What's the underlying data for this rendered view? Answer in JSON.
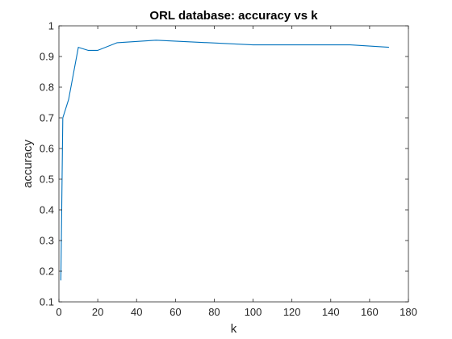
{
  "chart_data": {
    "type": "line",
    "title": "ORL database: accuracy vs k",
    "xlabel": "k",
    "ylabel": "accuracy",
    "xlim": [
      0,
      180
    ],
    "ylim": [
      0.1,
      1
    ],
    "xticks": [
      0,
      20,
      40,
      60,
      80,
      100,
      120,
      140,
      160,
      180
    ],
    "yticks": [
      0.1,
      0.2,
      0.3,
      0.4,
      0.5,
      0.6,
      0.7,
      0.8,
      0.9,
      1
    ],
    "ytick_labels": [
      "0.1",
      "0.2",
      "0.3",
      "0.4",
      "0.5",
      "0.6",
      "0.7",
      "0.8",
      "0.9",
      "1"
    ],
    "grid": false,
    "series": [
      {
        "color": "#0072BD",
        "x": [
          1,
          2,
          3,
          5,
          10,
          15,
          20,
          30,
          50,
          100,
          150,
          170
        ],
        "y": [
          0.17,
          0.7,
          0.72,
          0.76,
          0.93,
          0.92,
          0.92,
          0.945,
          0.953,
          0.938,
          0.938,
          0.93
        ]
      }
    ]
  }
}
